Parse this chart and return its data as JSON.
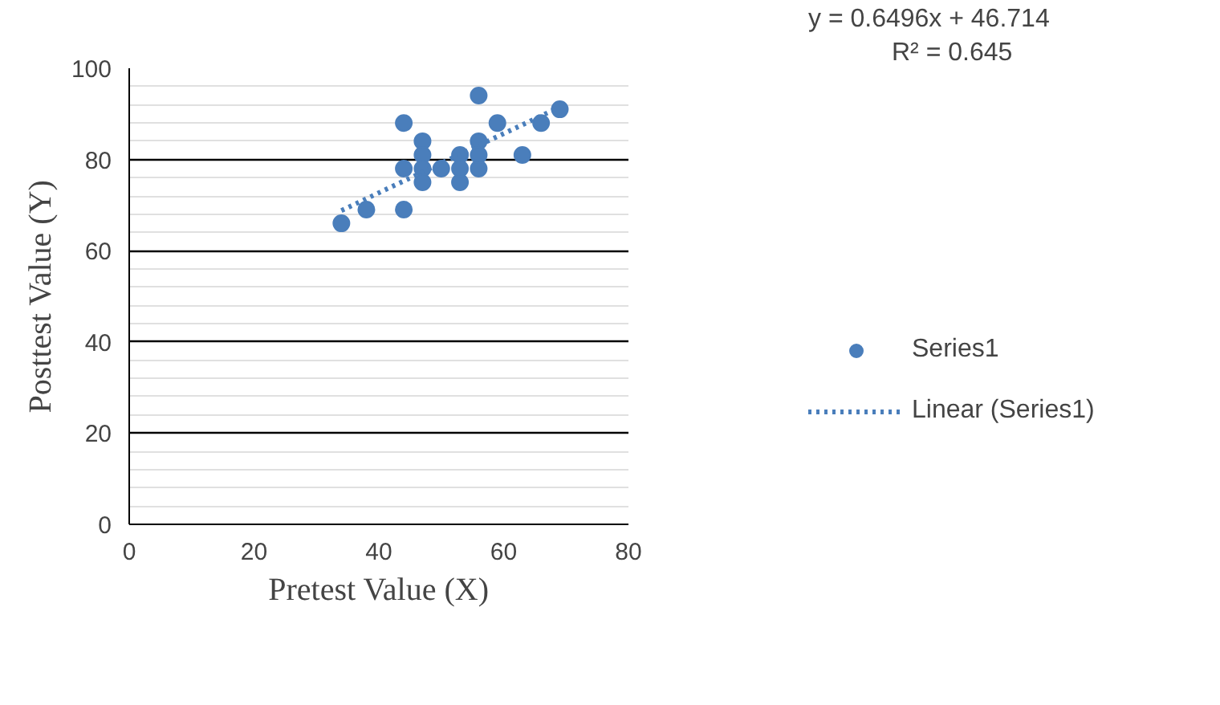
{
  "chart_data": {
    "type": "scatter",
    "xlabel": "Pretest Value (X)",
    "ylabel": "Posttest Value (Y)",
    "series": [
      {
        "name": "Series1",
        "marker": "circle",
        "color": "#4a7ebb",
        "x": [
          34,
          38,
          44,
          44,
          44,
          47,
          47,
          47,
          47,
          50,
          53,
          53,
          53,
          56,
          56,
          56,
          56,
          59,
          63,
          66,
          69
        ],
        "values": [
          66,
          69,
          88,
          69,
          78,
          84,
          81,
          78,
          75,
          78,
          81,
          75,
          78,
          94,
          84,
          78,
          81,
          88,
          81,
          88,
          91
        ]
      },
      {
        "name": "Linear (Series1)",
        "type": "line",
        "line_style": "dotted",
        "color": "#4a7ebb",
        "x": [
          34,
          69
        ],
        "values": [
          68.8,
          91.5
        ]
      }
    ],
    "annotations": [
      "y = 0.6496x + 46.714",
      "R² = 0.645"
    ],
    "xlim": [
      0,
      80
    ],
    "xticks": [
      0,
      20,
      40,
      60,
      80
    ],
    "ylim": [
      0,
      100
    ],
    "yticks": [
      0,
      20,
      40,
      60,
      80,
      100
    ],
    "grid": "y",
    "legend": "right"
  }
}
